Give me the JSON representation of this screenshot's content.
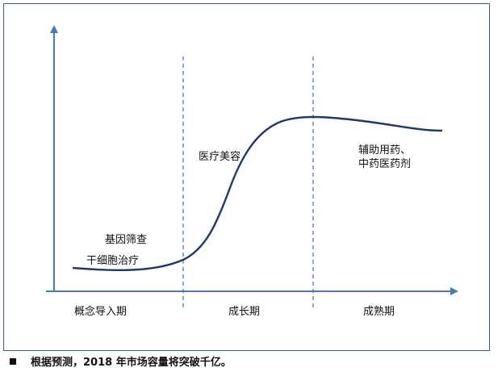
{
  "diagram": {
    "curve_labels": {
      "gene_screening": "基因筛查",
      "stem_cell_therapy": "干细胞治疗",
      "medical_cosmetology": "医疗美容",
      "adjuvant_drugs_line1": "辅助用药、",
      "adjuvant_drugs_line2": "中药医药剂"
    },
    "stages": {
      "introduction": "概念导入期",
      "growth": "成长期",
      "maturity": "成熟期"
    }
  },
  "footnote": {
    "text": "根据预测，2018 年市场容量将突破千亿。"
  },
  "colors": {
    "axis": "#4a78b8",
    "curve": "#1f3864",
    "frame": "#3a5f8a"
  }
}
